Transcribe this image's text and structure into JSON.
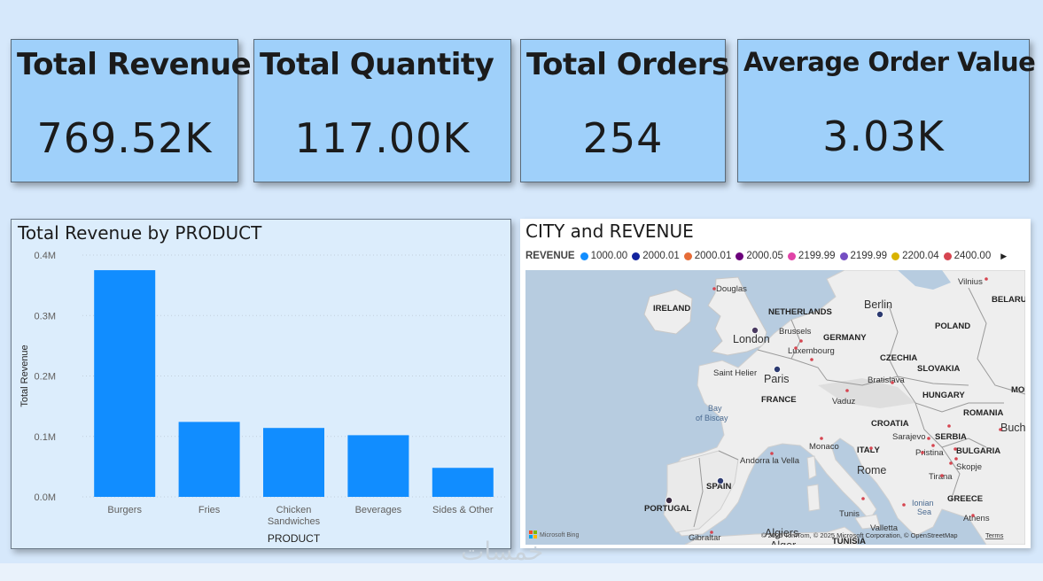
{
  "kpis": [
    {
      "id": "total-revenue",
      "title": "Total Revenue",
      "value": "769.52K"
    },
    {
      "id": "total-quantity",
      "title": "Total Quantity",
      "value": "117.00K"
    },
    {
      "id": "total-orders",
      "title": "Total Orders",
      "value": "254"
    },
    {
      "id": "average-order-value",
      "title": "Average Order Value",
      "value": "3.03K"
    }
  ],
  "bar_chart": {
    "title": "Total Revenue by PRODUCT"
  },
  "chart_data": {
    "type": "bar",
    "title": "Total Revenue by PRODUCT",
    "xlabel": "PRODUCT",
    "ylabel": "Total Revenue",
    "categories": [
      "Burgers",
      "Fries",
      "Chicken Sandwiches",
      "Beverages",
      "Sides & Other"
    ],
    "category_lines": [
      [
        "Burgers"
      ],
      [
        "Fries"
      ],
      [
        "Chicken",
        "Sandwiches"
      ],
      [
        "Beverages"
      ],
      [
        "Sides & Other"
      ]
    ],
    "values": [
      375000,
      124000,
      114000,
      102000,
      48000
    ],
    "ylim": [
      0,
      400000
    ],
    "yticks": [
      0,
      100000,
      200000,
      300000,
      400000
    ],
    "ytick_labels": [
      "0.0M",
      "0.1M",
      "0.2M",
      "0.3M",
      "0.4M"
    ],
    "bar_color": "#118dff",
    "grid": true
  },
  "map": {
    "title": "CITY and REVENUE",
    "legend_title": "REVENUE",
    "legend": [
      {
        "label": "1000.00",
        "color": "#118dff"
      },
      {
        "label": "2000.01",
        "color": "#12239e"
      },
      {
        "label": "2000.01",
        "color": "#e66c37"
      },
      {
        "label": "2000.05",
        "color": "#6b007b"
      },
      {
        "label": "2199.99",
        "color": "#e044a7"
      },
      {
        "label": "2199.99",
        "color": "#744ec2"
      },
      {
        "label": "2200.04",
        "color": "#d9b300"
      },
      {
        "label": "2400.00",
        "color": "#d64550"
      }
    ],
    "labels": {
      "douglas": "Douglas",
      "ireland": "IRELAND",
      "netherlands": "NETHERLANDS",
      "berlin": "Berlin",
      "poland": "POLAND",
      "belarus": "BELARU",
      "vilnius": "Vilnius",
      "london": "London",
      "brussels": "Brussels",
      "germany": "GERMANY",
      "luxembourg": "Luxembourg",
      "czechia": "CZECHIA",
      "slovakia": "SLOVAKIA",
      "saint_helier": "Saint Helier",
      "paris": "Paris",
      "bratislava": "Bratislava",
      "hungary": "HUNGARY",
      "moldova": "MOLDO",
      "france": "FRANCE",
      "vaduz": "Vaduz",
      "bay_of_biscay_1": "Bay",
      "bay_of_biscay_2": "of Biscay",
      "romania": "ROMANIA",
      "croatia": "CROATIA",
      "sarajevo": "Sarajevo",
      "serbia": "SERBIA",
      "bucharest": "Buch",
      "monaco": "Monaco",
      "italy": "ITALY",
      "pristina": "Pristina",
      "bulgaria": "BULGARIA",
      "andorra": "Andorra la Vella",
      "rome": "Rome",
      "skopje": "Skopje",
      "spain": "SPAIN",
      "tirana": "Tirana",
      "portugal": "PORTUGAL",
      "greece": "GREECE",
      "ionian_1": "Ionian",
      "ionian_2": "Sea",
      "tunis": "Tunis",
      "athens": "Athens",
      "valletta": "Valletta",
      "gibraltar": "Gibraltar",
      "algiers": "Algiers",
      "tunisia": "TUNISIA",
      "alger": "Alger"
    },
    "attribution_bing": "Microsoft Bing",
    "attribution": "© 2025 TomTom, © 2025 Microsoft Corporation, © OpenStreetMap",
    "terms": "Terms"
  },
  "watermark": "خمسات"
}
